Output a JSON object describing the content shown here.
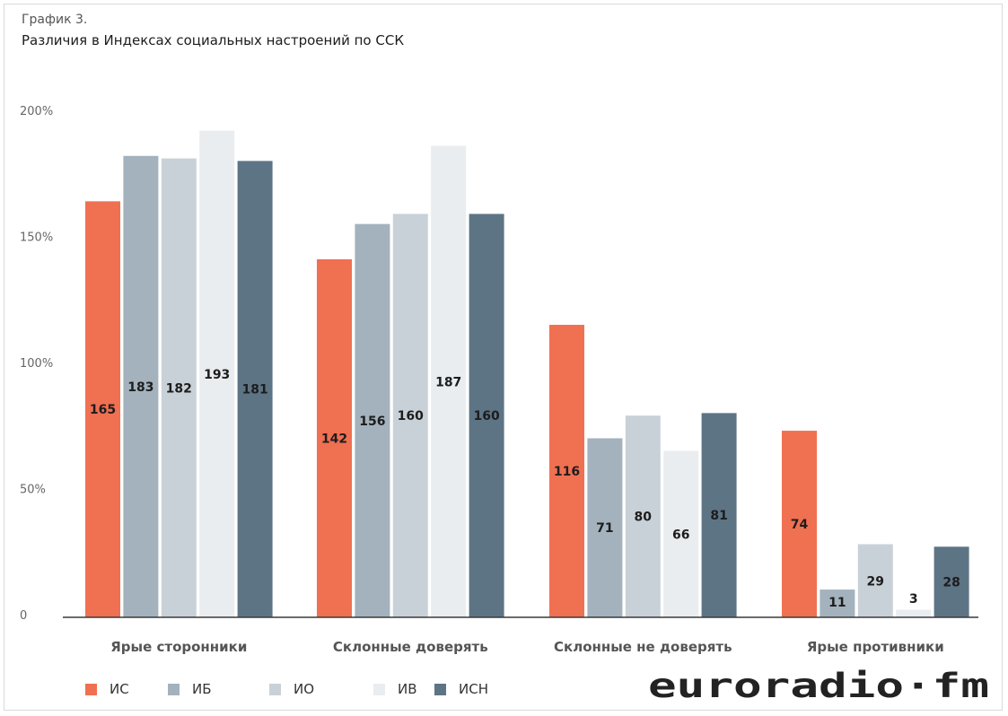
{
  "header": {
    "subtitle": "График 3.",
    "title": "Различия в Индексах социальных настроений по ССК"
  },
  "logo_text": "euroradio·fm",
  "colors": {
    "ИС": "#f07052",
    "ИБ": "#a3b2bd",
    "ИО": "#c9d1d8",
    "ИВ": "#e9edf0",
    "ИСН": "#5d7485",
    "axis": "#3a3a3a",
    "tick": "#666666",
    "category_label": "#555555"
  },
  "chart_data": {
    "type": "bar",
    "categories": [
      "Ярые сторонники",
      "Склонные доверять",
      "Склонные не доверять",
      "Ярые противники"
    ],
    "series": [
      {
        "name": "ИС",
        "values": [
          165,
          142,
          116,
          74
        ]
      },
      {
        "name": "ИБ",
        "values": [
          183,
          156,
          71,
          11
        ]
      },
      {
        "name": "ИО",
        "values": [
          182,
          160,
          80,
          29
        ]
      },
      {
        "name": "ИВ",
        "values": [
          193,
          187,
          66,
          3
        ]
      },
      {
        "name": "ИСН",
        "values": [
          181,
          160,
          81,
          28
        ]
      }
    ],
    "yticks": [
      "0",
      "50%",
      "100%",
      "150%",
      "200%"
    ],
    "ytick_values": [
      0,
      50,
      100,
      150,
      200
    ],
    "ylim": [
      0,
      200
    ],
    "legend_position": "bottom-left",
    "grid": false
  }
}
